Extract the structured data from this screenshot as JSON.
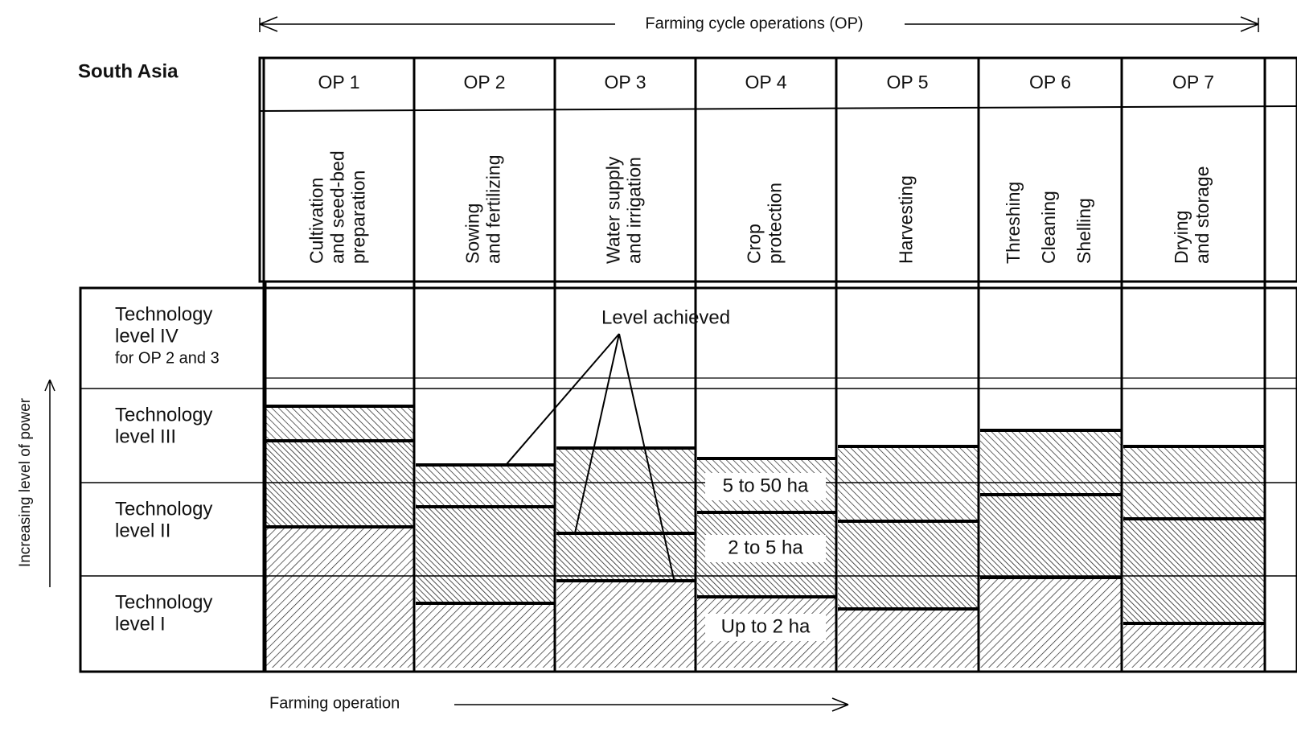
{
  "header": {
    "title": "Farming cycle operations (OP)",
    "region": "South Asia"
  },
  "operations": [
    {
      "id": "OP 1",
      "lines": [
        "Cultivation",
        "and seed-bed",
        "preparation"
      ]
    },
    {
      "id": "OP 2",
      "lines": [
        "Sowing",
        "and fertilizing"
      ]
    },
    {
      "id": "OP 3",
      "lines": [
        "Water supply",
        "and irrigation"
      ]
    },
    {
      "id": "OP 4",
      "lines": [
        "Crop",
        "protection"
      ]
    },
    {
      "id": "OP 5",
      "lines": [
        "Harvesting"
      ]
    },
    {
      "id": "OP 6",
      "lines": [
        "Threshing",
        "Cleaning",
        "Shelling"
      ]
    },
    {
      "id": "OP 7",
      "lines": [
        "Drying",
        "and storage"
      ]
    }
  ],
  "levels": [
    {
      "lines": [
        "Technology",
        "level IV",
        "for OP 2 and 3"
      ]
    },
    {
      "lines": [
        "Technology",
        "level III"
      ]
    },
    {
      "lines": [
        "Technology",
        "level II"
      ]
    },
    {
      "lines": [
        "Technology",
        "level I"
      ]
    }
  ],
  "annotation": "Level achieved",
  "farm_sizes": [
    "5 to 50 ha",
    "2 to 5 ha",
    "Up to 2 ha"
  ],
  "y_axis_label": "Increasing level of power",
  "x_axis_label": "Farming operation"
}
